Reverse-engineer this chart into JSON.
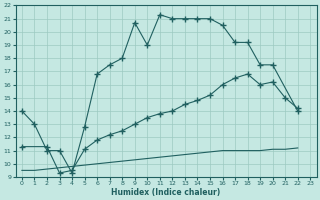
{
  "xlabel": "Humidex (Indice chaleur)",
  "bg_color": "#c5e8e2",
  "grid_color": "#9dcac2",
  "line_color": "#206060",
  "xlim": [
    -0.5,
    23.5
  ],
  "ylim": [
    9,
    22
  ],
  "xticks": [
    0,
    1,
    2,
    3,
    4,
    5,
    6,
    7,
    8,
    9,
    10,
    11,
    12,
    13,
    14,
    15,
    16,
    17,
    18,
    19,
    20,
    21,
    22,
    23
  ],
  "yticks": [
    9,
    10,
    11,
    12,
    13,
    14,
    15,
    16,
    17,
    18,
    19,
    20,
    21,
    22
  ],
  "curve1_x": [
    0,
    1,
    2,
    3,
    4,
    5,
    6,
    7,
    8,
    9,
    10,
    11,
    12,
    13,
    14,
    15,
    16,
    17,
    18,
    19,
    20,
    22
  ],
  "curve1_y": [
    14.0,
    13.0,
    11.0,
    11.0,
    9.3,
    12.8,
    16.8,
    17.5,
    18.0,
    20.7,
    19.0,
    21.3,
    21.0,
    21.0,
    21.0,
    21.0,
    20.5,
    19.2,
    19.2,
    17.5,
    17.5,
    14.0
  ],
  "curve2_x": [
    0,
    2,
    3,
    4,
    5,
    6,
    7,
    8,
    9,
    10,
    11,
    12,
    13,
    14,
    15,
    16,
    17,
    18,
    19,
    20,
    21,
    22
  ],
  "curve2_y": [
    11.3,
    11.3,
    9.3,
    9.5,
    11.1,
    11.8,
    12.2,
    12.5,
    13.0,
    13.5,
    13.8,
    14.0,
    14.5,
    14.8,
    15.2,
    16.0,
    16.5,
    16.8,
    16.0,
    16.2,
    15.0,
    14.2
  ],
  "curve3_x": [
    0,
    1,
    2,
    3,
    4,
    5,
    6,
    7,
    8,
    9,
    10,
    11,
    12,
    13,
    14,
    15,
    16,
    17,
    18,
    19,
    20,
    21,
    22
  ],
  "curve3_y": [
    9.5,
    9.5,
    9.6,
    9.7,
    9.8,
    9.9,
    10.0,
    10.1,
    10.2,
    10.3,
    10.4,
    10.5,
    10.6,
    10.7,
    10.8,
    10.9,
    11.0,
    11.0,
    11.0,
    11.0,
    11.1,
    11.1,
    11.2
  ]
}
